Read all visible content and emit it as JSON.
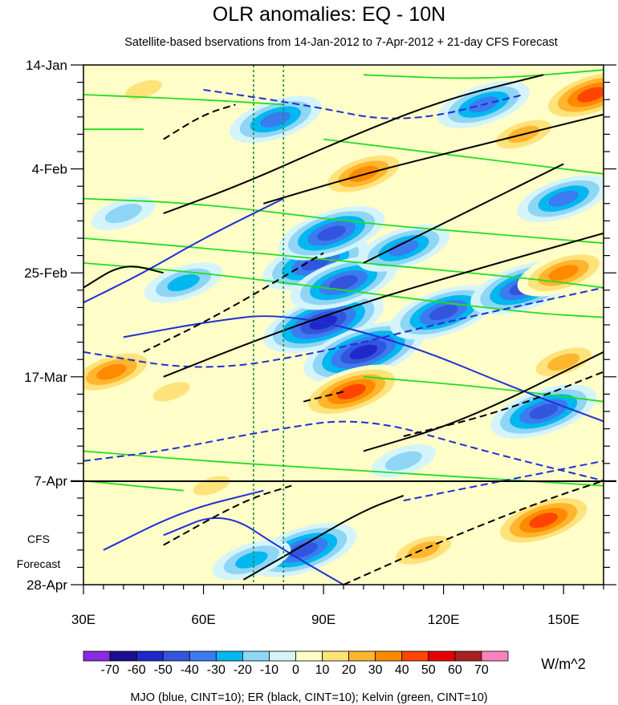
{
  "chart_data": {
    "type": "heatmap",
    "title": "OLR anomalies: EQ - 10N",
    "subtitle": "Satellite-based bservations from 14-Jan-2012 to 7-Apr-2012 + 21-day CFS Forecast",
    "x": {
      "label": "",
      "range_deg": [
        30,
        160
      ],
      "ticks": [
        {
          "value": 30,
          "label": "30E"
        },
        {
          "value": 60,
          "label": "60E"
        },
        {
          "value": 90,
          "label": "90E"
        },
        {
          "value": 120,
          "label": "120E"
        },
        {
          "value": 150,
          "label": "150E"
        }
      ]
    },
    "y": {
      "label": "",
      "direction": "time increases downward",
      "range_days": [
        0,
        105
      ],
      "ticks": [
        {
          "value": 0,
          "label": "14-Jan"
        },
        {
          "value": 21,
          "label": "4-Feb"
        },
        {
          "value": 42,
          "label": "25-Feb"
        },
        {
          "value": 63,
          "label": "17-Mar"
        },
        {
          "value": 84,
          "label": "7-Apr"
        },
        {
          "value": 105,
          "label": "28-Apr"
        }
      ],
      "forecast_start_day": 84,
      "forecast_label_line1": "CFS",
      "forecast_label_line2": "Forecast"
    },
    "reference_lines_deg": [
      72.5,
      80
    ],
    "colorbar": {
      "unit": "W/m^2",
      "levels": [
        -80,
        -70,
        -60,
        -50,
        -40,
        -30,
        -20,
        -10,
        0,
        10,
        20,
        30,
        40,
        50,
        60,
        70,
        80
      ],
      "labels": [
        "-70",
        "-60",
        "-50",
        "-40",
        "-30",
        "-20",
        "-10",
        "0",
        "10",
        "20",
        "30",
        "40",
        "50",
        "60",
        "70"
      ],
      "colors": [
        "#8a2be2",
        "#1d0f8f",
        "#1f28c8",
        "#3355dd",
        "#3a7cf0",
        "#00b7f0",
        "#8fd5f5",
        "#d4f4fa",
        "#fffdc8",
        "#ffe27a",
        "#ffb52d",
        "#ff8a00",
        "#ff4400",
        "#e50000",
        "#a82020",
        "#ff80c0"
      ]
    },
    "anomaly_centers": [
      {
        "lon": 37,
        "day": 62,
        "value": 45
      },
      {
        "lon": 90,
        "day": 52,
        "value": -65
      },
      {
        "lon": 100,
        "day": 58,
        "value": -60
      },
      {
        "lon": 88,
        "day": 40,
        "value": -55
      },
      {
        "lon": 95,
        "day": 44,
        "value": -50
      },
      {
        "lon": 120,
        "day": 50,
        "value": -50
      },
      {
        "lon": 140,
        "day": 45,
        "value": -55
      },
      {
        "lon": 145,
        "day": 70,
        "value": -50
      },
      {
        "lon": 78,
        "day": 11,
        "value": -45
      },
      {
        "lon": 130,
        "day": 8,
        "value": -40
      },
      {
        "lon": 92,
        "day": 34,
        "value": -55
      },
      {
        "lon": 110,
        "day": 37,
        "value": -45
      },
      {
        "lon": 150,
        "day": 27,
        "value": -45
      },
      {
        "lon": 157,
        "day": 6,
        "value": 55
      },
      {
        "lon": 140,
        "day": 14,
        "value": 35
      },
      {
        "lon": 150,
        "day": 42,
        "value": 45
      },
      {
        "lon": 97,
        "day": 66,
        "value": 50
      },
      {
        "lon": 100,
        "day": 22,
        "value": 40
      },
      {
        "lon": 145,
        "day": 92,
        "value": 55
      },
      {
        "lon": 115,
        "day": 98,
        "value": 30
      },
      {
        "lon": 150,
        "day": 60,
        "value": 30
      },
      {
        "lon": 52,
        "day": 66,
        "value": 25
      },
      {
        "lon": 85,
        "day": 98,
        "value": -50
      },
      {
        "lon": 72,
        "day": 100,
        "value": -35
      },
      {
        "lon": 40,
        "day": 95,
        "value": 15
      },
      {
        "lon": 62,
        "day": 85,
        "value": 20
      },
      {
        "lon": 55,
        "day": 44,
        "value": -30
      },
      {
        "lon": 40,
        "day": 30,
        "value": -20
      },
      {
        "lon": 45,
        "day": 5,
        "value": 25
      },
      {
        "lon": 110,
        "day": 80,
        "value": -25
      }
    ],
    "contour_sets": {
      "mjo": {
        "color": "#1f2fd6",
        "cint": 10,
        "lines": [
          {
            "dash": false,
            "pts": [
              [
                30,
                48
              ],
              [
                45,
                42
              ],
              [
                60,
                35
              ],
              [
                80,
                27
              ]
            ]
          },
          {
            "dash": false,
            "pts": [
              [
                40,
                55
              ],
              [
                60,
                52
              ],
              [
                80,
                50
              ],
              [
                110,
                56
              ],
              [
                140,
                66
              ],
              [
                160,
                72
              ]
            ]
          },
          {
            "dash": false,
            "pts": [
              [
                50,
                95
              ],
              [
                65,
                90
              ],
              [
                80,
                98
              ],
              [
                95,
                105
              ]
            ]
          },
          {
            "dash": false,
            "pts": [
              [
                35,
                98
              ],
              [
                55,
                90
              ],
              [
                75,
                86
              ]
            ]
          },
          {
            "dash": true,
            "pts": [
              [
                30,
                58
              ],
              [
                60,
                62
              ],
              [
                90,
                58
              ],
              [
                120,
                52
              ],
              [
                160,
                45
              ]
            ]
          },
          {
            "dash": true,
            "pts": [
              [
                30,
                80
              ],
              [
                50,
                78
              ],
              [
                75,
                74
              ],
              [
                100,
                71
              ],
              [
                130,
                78
              ],
              [
                160,
                84
              ]
            ]
          },
          {
            "dash": true,
            "pts": [
              [
                60,
                5
              ],
              [
                85,
                8
              ],
              [
                110,
                12
              ],
              [
                140,
                6
              ]
            ]
          },
          {
            "dash": true,
            "pts": [
              [
                110,
                88
              ],
              [
                135,
                84
              ],
              [
                160,
                80
              ]
            ]
          }
        ]
      },
      "er": {
        "color": "#000000",
        "cint": 10,
        "lines": [
          {
            "dash": false,
            "pts": [
              [
                50,
                30
              ],
              [
                70,
                24
              ],
              [
                95,
                15
              ],
              [
                120,
                7
              ],
              [
                145,
                2
              ]
            ]
          },
          {
            "dash": false,
            "pts": [
              [
                50,
                63
              ],
              [
                75,
                55
              ],
              [
                100,
                48
              ],
              [
                125,
                42
              ],
              [
                160,
                34
              ]
            ]
          },
          {
            "dash": false,
            "pts": [
              [
                75,
                28
              ],
              [
                100,
                22
              ],
              [
                130,
                16
              ],
              [
                160,
                10
              ]
            ]
          },
          {
            "dash": false,
            "pts": [
              [
                100,
                78
              ],
              [
                125,
                72
              ],
              [
                160,
                58
              ]
            ]
          },
          {
            "dash": false,
            "pts": [
              [
                70,
                104
              ],
              [
                85,
                97
              ],
              [
                100,
                90
              ],
              [
                110,
                87
              ]
            ]
          },
          {
            "dash": false,
            "pts": [
              [
                100,
                40
              ],
              [
                125,
                30
              ],
              [
                150,
                20
              ]
            ]
          },
          {
            "dash": false,
            "pts": [
              [
                30,
                45
              ],
              [
                40,
                40
              ],
              [
                50,
                42
              ]
            ]
          },
          {
            "dash": true,
            "pts": [
              [
                50,
                15
              ],
              [
                60,
                10
              ],
              [
                68,
                8
              ]
            ]
          },
          {
            "dash": true,
            "pts": [
              [
                45,
                58
              ],
              [
                65,
                50
              ],
              [
                90,
                38
              ]
            ]
          },
          {
            "dash": true,
            "pts": [
              [
                110,
                75
              ],
              [
                135,
                70
              ],
              [
                160,
                62
              ]
            ]
          },
          {
            "dash": true,
            "pts": [
              [
                50,
                97
              ],
              [
                70,
                88
              ],
              [
                82,
                85
              ]
            ]
          },
          {
            "dash": true,
            "pts": [
              [
                95,
                105
              ],
              [
                120,
                96
              ],
              [
                145,
                88
              ],
              [
                160,
                84
              ]
            ]
          },
          {
            "dash": true,
            "pts": [
              [
                85,
                68
              ],
              [
                95,
                66
              ]
            ]
          }
        ]
      },
      "kelvin": {
        "color": "#22dd22",
        "cint": 10,
        "lines": [
          {
            "dash": false,
            "pts": [
              [
                30,
                27
              ],
              [
                60,
                28
              ],
              [
                100,
                32
              ],
              [
                130,
                34
              ],
              [
                160,
                36
              ]
            ]
          },
          {
            "dash": false,
            "pts": [
              [
                30,
                35
              ],
              [
                60,
                37
              ],
              [
                100,
                40
              ],
              [
                140,
                43
              ],
              [
                160,
                45
              ]
            ]
          },
          {
            "dash": false,
            "pts": [
              [
                30,
                40
              ],
              [
                60,
                42
              ],
              [
                100,
                46
              ],
              [
                140,
                50
              ],
              [
                160,
                51
              ]
            ]
          },
          {
            "dash": false,
            "pts": [
              [
                90,
                15
              ],
              [
                120,
                18
              ],
              [
                160,
                22
              ]
            ]
          },
          {
            "dash": false,
            "pts": [
              [
                100,
                2
              ],
              [
                130,
                3
              ],
              [
                160,
                1
              ]
            ]
          },
          {
            "dash": false,
            "pts": [
              [
                30,
                78
              ],
              [
                60,
                80
              ],
              [
                100,
                82
              ],
              [
                140,
                84
              ],
              [
                160,
                85
              ]
            ]
          },
          {
            "dash": false,
            "pts": [
              [
                30,
                84
              ],
              [
                55,
                86
              ]
            ]
          },
          {
            "dash": false,
            "pts": [
              [
                100,
                63
              ],
              [
                130,
                65
              ],
              [
                160,
                68
              ]
            ]
          },
          {
            "dash": false,
            "pts": [
              [
                30,
                6
              ],
              [
                60,
                7
              ],
              [
                80,
                8
              ]
            ]
          },
          {
            "dash": false,
            "pts": [
              [
                30,
                13
              ],
              [
                45,
                13
              ]
            ]
          }
        ]
      }
    }
  },
  "caption": "MJO (blue, CINT=10); ER (black, CINT=10); Kelvin (green, CINT=10)"
}
